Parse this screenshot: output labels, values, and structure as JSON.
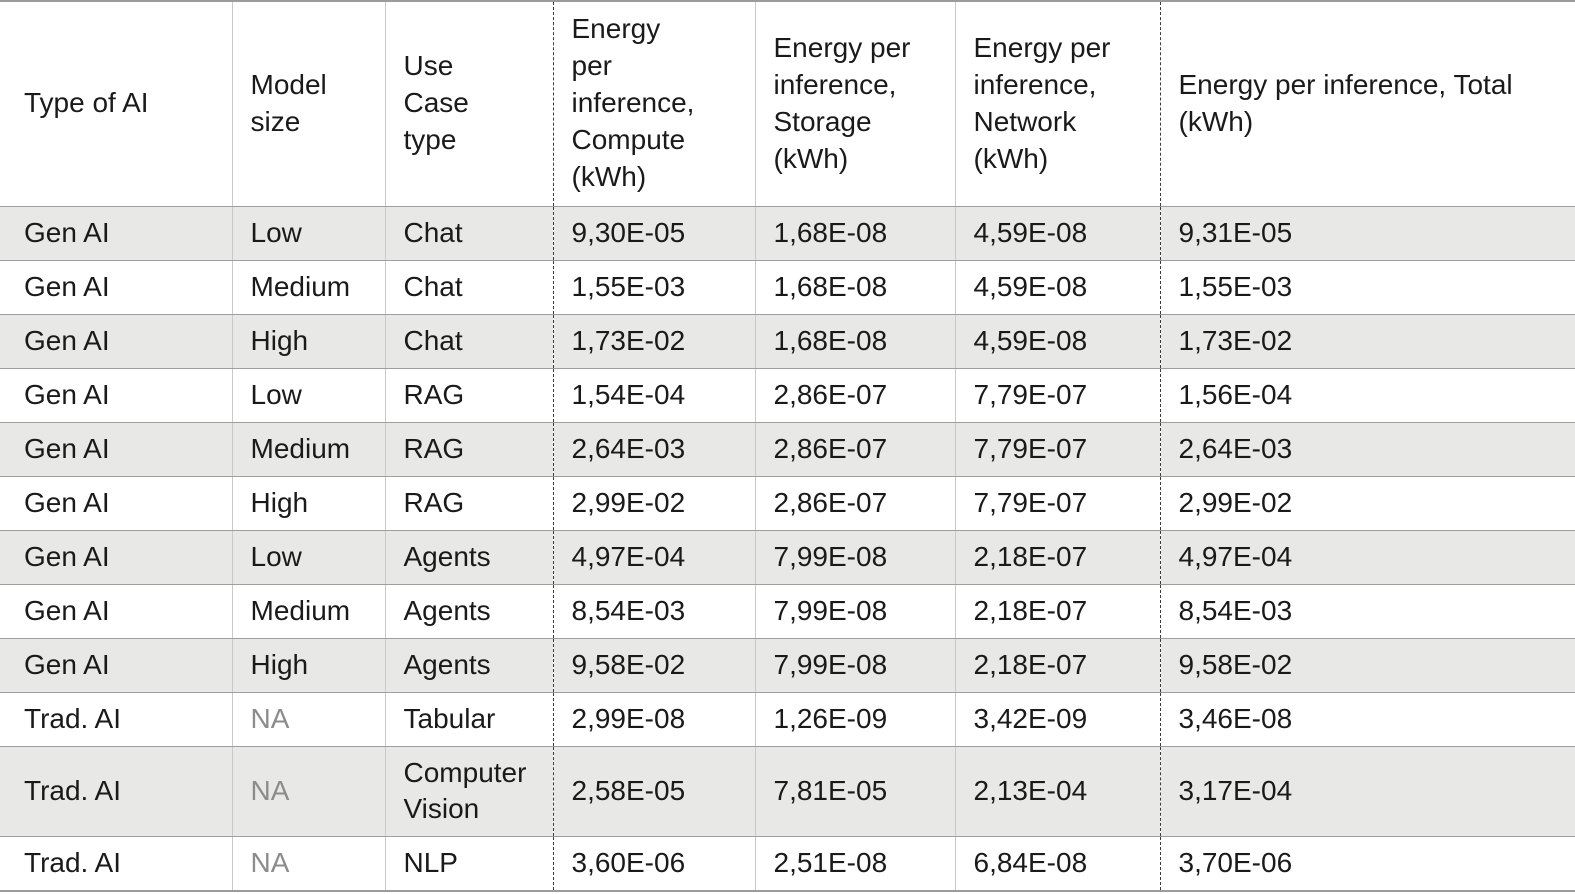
{
  "colors": {
    "row_shaded": "#e8e8e7",
    "row_plain": "#ffffff",
    "text": "#1a1a1a",
    "na_text": "#8c8c8c",
    "row_border": "#9e9e9e",
    "column_border": "#c9c9c9",
    "dashed_separator": "#3c3c3c"
  },
  "chart_data": {
    "type": "table",
    "columns": [
      "Type of AI",
      "Model size",
      "Use Case type",
      "Energy per inference, Compute (kWh)",
      "Energy per inference, Storage (kWh)",
      "Energy per inference, Network (kWh)",
      "Energy per inference, Total (kWh)"
    ],
    "rows": [
      [
        "Gen AI",
        "Low",
        "Chat",
        "9,30E-05",
        "1,68E-08",
        "4,59E-08",
        "9,31E-05"
      ],
      [
        "Gen AI",
        "Medium",
        "Chat",
        "1,55E-03",
        "1,68E-08",
        "4,59E-08",
        "1,55E-03"
      ],
      [
        "Gen AI",
        "High",
        "Chat",
        "1,73E-02",
        "1,68E-08",
        "4,59E-08",
        "1,73E-02"
      ],
      [
        "Gen AI",
        "Low",
        "RAG",
        "1,54E-04",
        "2,86E-07",
        "7,79E-07",
        "1,56E-04"
      ],
      [
        "Gen AI",
        "Medium",
        "RAG",
        "2,64E-03",
        "2,86E-07",
        "7,79E-07",
        "2,64E-03"
      ],
      [
        "Gen AI",
        "High",
        "RAG",
        "2,99E-02",
        "2,86E-07",
        "7,79E-07",
        "2,99E-02"
      ],
      [
        "Gen AI",
        "Low",
        "Agents",
        "4,97E-04",
        "7,99E-08",
        "2,18E-07",
        "4,97E-04"
      ],
      [
        "Gen AI",
        "Medium",
        "Agents",
        "8,54E-03",
        "7,99E-08",
        "2,18E-07",
        "8,54E-03"
      ],
      [
        "Gen AI",
        "High",
        "Agents",
        "9,58E-02",
        "7,99E-08",
        "2,18E-07",
        "9,58E-02"
      ],
      [
        "Trad. AI",
        "NA",
        "Tabular",
        "2,99E-08",
        "1,26E-09",
        "3,42E-09",
        "3,46E-08"
      ],
      [
        "Trad. AI",
        "NA",
        "Computer Vision",
        "2,58E-05",
        "7,81E-05",
        "2,13E-04",
        "3,17E-04"
      ],
      [
        "Trad. AI",
        "NA",
        "NLP",
        "3,60E-06",
        "2,51E-08",
        "6,84E-08",
        "3,70E-06"
      ]
    ],
    "na_label": "NA",
    "layout": {
      "striped_rows": true,
      "first_data_row_shaded": true,
      "dashed_separators_before_column_indexes": [
        3,
        6
      ],
      "grid": "horizontal lines between all rows, light vertical lines between columns"
    }
  }
}
